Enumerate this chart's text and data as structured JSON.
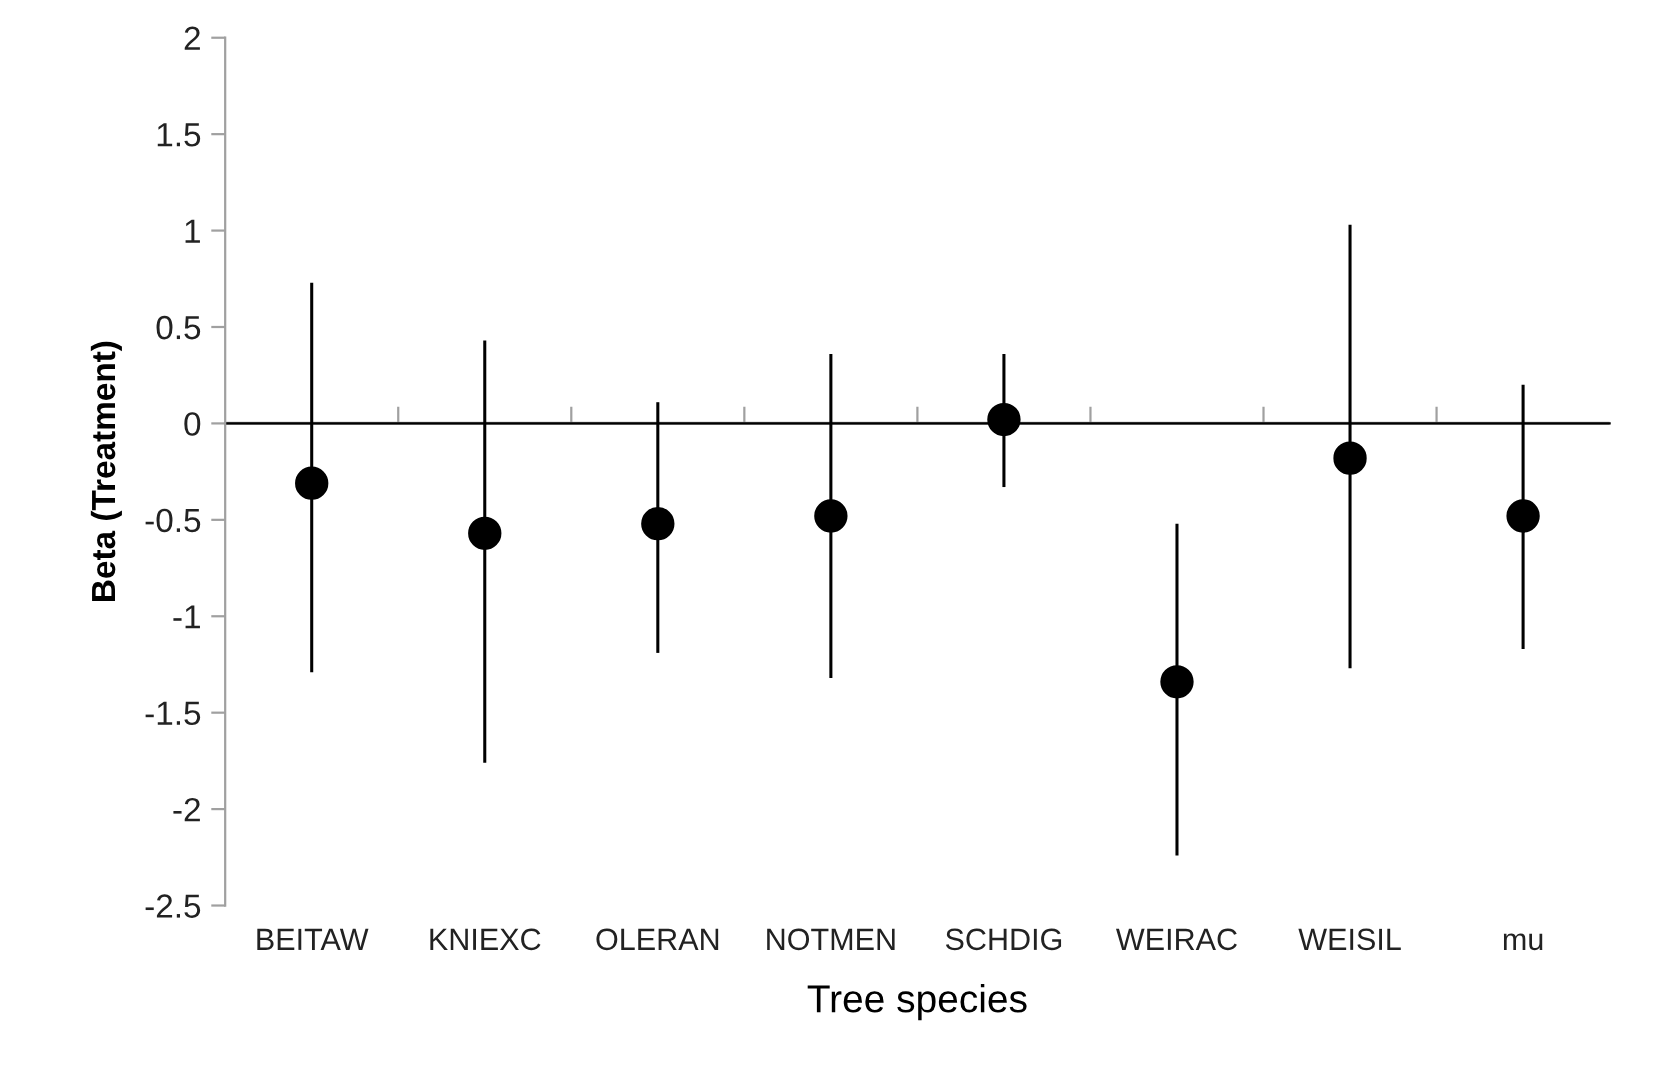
{
  "chart_data": {
    "type": "scatter",
    "xlabel": "Tree species",
    "ylabel": "Beta (Treatment)",
    "categories": [
      "BEITAW",
      "KNIEXC",
      "OLERAN",
      "NOTMEN",
      "SCHDIG",
      "WEIRAC",
      "WEISIL",
      "mu"
    ],
    "values": [
      -0.31,
      -0.57,
      -0.52,
      -0.48,
      0.02,
      -1.34,
      -0.18,
      -0.48
    ],
    "errors": [
      [
        -1.29,
        0.73
      ],
      [
        -1.76,
        0.43
      ],
      [
        -1.19,
        0.11
      ],
      [
        -1.32,
        0.36
      ],
      [
        -0.33,
        0.36
      ],
      [
        -2.24,
        -0.52
      ],
      [
        -1.27,
        1.03
      ],
      [
        -1.17,
        0.2
      ]
    ],
    "color": "#000000",
    "marker": "circle",
    "ylim": [
      -2.5,
      2
    ],
    "yticks": [
      -2.5,
      -2,
      -1.5,
      -1,
      -0.5,
      0,
      0.5,
      1,
      1.5,
      2
    ],
    "grid": false,
    "legend": false,
    "ref_lines": [
      {
        "axis": "y",
        "value": 0,
        "color": "#a0a0a0"
      }
    ]
  }
}
